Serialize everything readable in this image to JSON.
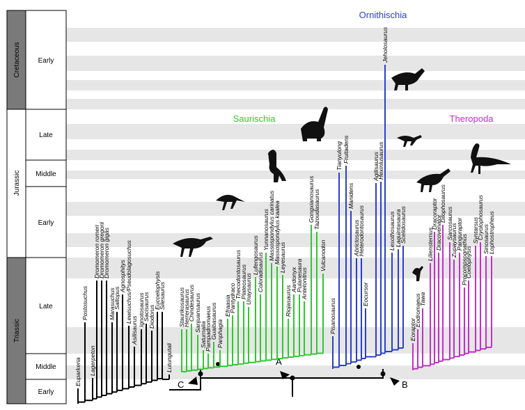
{
  "time_scale": {
    "periods": [
      "Cretaceous",
      "Jurassic",
      "Triassic"
    ],
    "epochs": [
      "Early",
      "Late",
      "Middle",
      "Early",
      "Late",
      "Middle",
      "Early"
    ]
  },
  "clades": [
    {
      "taxa": [
        "Euparkeria",
        "Postosuchus",
        "Lagerpeton",
        "Dromomeron romeri",
        "Dromomeron gregorii",
        "Dromomeron gigas",
        "Marasuchus",
        "Saltopus",
        "Agnosphitys",
        "Lewisuchus/Pseudolagosuchus",
        "Asilisaurus",
        "Ignotosaurus",
        "Sacisaurus",
        "Diodorus",
        "Eucoelophysis",
        "Silesaurus",
        "Lutungutali"
      ]
    },
    {
      "label": "Saurischia",
      "taxa": [
        "Staurikosaurus",
        "Herrerasaurus",
        "Chindesaurus",
        "Sanjuansaurus",
        "Saturnalia",
        "Pampadromaeus",
        "Guaibasaurus",
        "Panphagia",
        "Efraasia",
        "Pantydraco",
        "Thecodontosaurus",
        "Plateosaurus",
        "Unaysaurus",
        "Lufengosaurus",
        "Coloradisaurus",
        "Yunnanosaurus",
        "Massospondylus carinatus",
        "Massospondylus kaalea",
        "Leyesaurus",
        "Riojasaurus",
        "Aardonyx",
        "Pulanesaura",
        "Antetonitrus",
        "Gongxianosaurus",
        "Tazoudasaurus",
        "Vulcanodon"
      ]
    },
    {
      "label": "Ornithischia",
      "taxa": [
        "Pisanosaurus",
        "Tianyulong",
        "Fruitadens",
        "Manidens",
        "Abrictosaurus",
        "Heterodontosaurus",
        "Eocursor",
        "Agilisaurus",
        "Hexinlusaurus",
        "Jeholosaurus",
        "Lesothosaurus",
        "Laquintasaura",
        "Scelidosaurus"
      ]
    },
    {
      "label": "Theropoda",
      "taxa": [
        "Eoraptor",
        "Eodromaeus",
        "Tawa",
        "Liliensternus",
        "Dracoraptor",
        "Dracovenator",
        "Dilophosaurus",
        "Sarcosaurus",
        "Zupaysaurus",
        "Panguraptor",
        "Procompsognathus",
        "Coelophysis",
        "Syntarsus",
        "Cryolophosaurus",
        "Sinosaurus",
        "Lophostropheus"
      ]
    }
  ],
  "nodes": [
    "A",
    "B",
    "C"
  ]
}
